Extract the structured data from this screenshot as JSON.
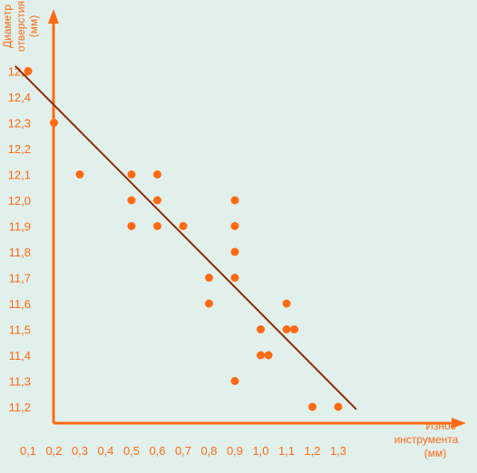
{
  "colors": {
    "background": "#e2f0ec",
    "axis": "#ff6a13",
    "points": "#ff6a13",
    "tick_text": "#ff6a13",
    "fit_line": "#8b2c05"
  },
  "chart_data": {
    "type": "scatter",
    "ylabel": "Диаметр отверстия (мм)",
    "ylabel_lines": [
      "Диаметр",
      "отверстия",
      "(мм)"
    ],
    "xlabel": "Износ инструмента (мм)",
    "xlabel_lines": [
      "Износ",
      "инструмента",
      "(мм)"
    ],
    "xlim": [
      0,
      1.4
    ],
    "ylim": [
      11.15,
      12.6
    ],
    "x_ticks": [
      "0,1",
      "0,2",
      "0,3",
      "0,4",
      "0,5",
      "0,6",
      "0,7",
      "0,8",
      "0,9",
      "1,0",
      "1,1",
      "1,2",
      "1,3"
    ],
    "y_ticks": [
      "11,2",
      "11,3",
      "11,4",
      "11,5",
      "11,6",
      "11,7",
      "11,8",
      "11,9",
      "12,0",
      "12,1",
      "12,2",
      "12,3",
      "12,4",
      "12,5"
    ],
    "grid": false,
    "points": [
      {
        "x": 0.1,
        "y": 12.5
      },
      {
        "x": 0.2,
        "y": 12.3
      },
      {
        "x": 0.3,
        "y": 12.1
      },
      {
        "x": 0.5,
        "y": 12.1
      },
      {
        "x": 0.5,
        "y": 12.0
      },
      {
        "x": 0.5,
        "y": 11.9
      },
      {
        "x": 0.6,
        "y": 12.1
      },
      {
        "x": 0.6,
        "y": 12.0
      },
      {
        "x": 0.6,
        "y": 11.9
      },
      {
        "x": 0.7,
        "y": 11.9
      },
      {
        "x": 0.8,
        "y": 11.7
      },
      {
        "x": 0.8,
        "y": 11.6
      },
      {
        "x": 0.9,
        "y": 12.0
      },
      {
        "x": 0.9,
        "y": 11.9
      },
      {
        "x": 0.9,
        "y": 11.8
      },
      {
        "x": 0.9,
        "y": 11.7
      },
      {
        "x": 0.9,
        "y": 11.3
      },
      {
        "x": 1.0,
        "y": 11.5
      },
      {
        "x": 1.0,
        "y": 11.4
      },
      {
        "x": 1.03,
        "y": 11.4
      },
      {
        "x": 1.1,
        "y": 11.6
      },
      {
        "x": 1.1,
        "y": 11.5
      },
      {
        "x": 1.13,
        "y": 11.5
      },
      {
        "x": 1.2,
        "y": 11.2
      },
      {
        "x": 1.3,
        "y": 11.2
      }
    ],
    "trend_line": {
      "x": [
        0.05,
        1.37
      ],
      "y": [
        12.52,
        11.19
      ]
    }
  }
}
